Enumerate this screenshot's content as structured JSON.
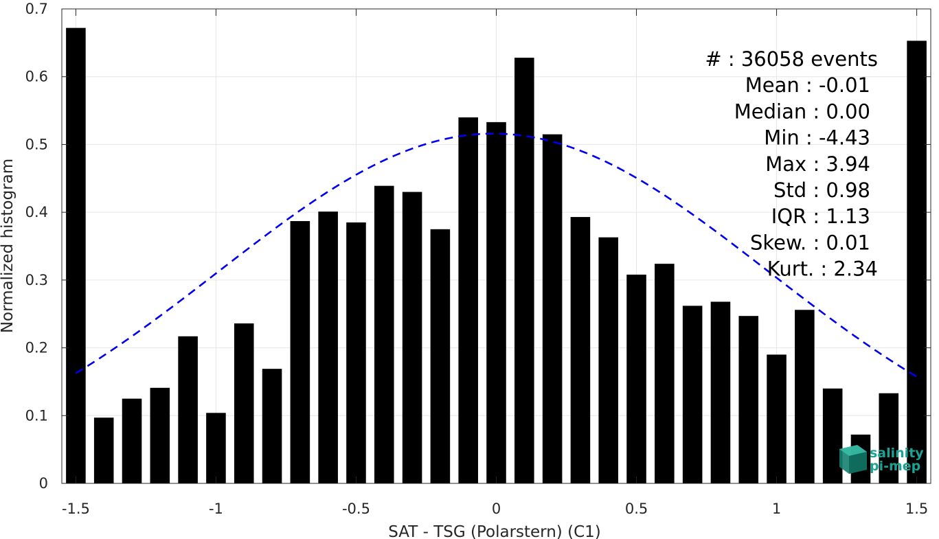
{
  "chart_data": {
    "type": "bar",
    "xlabel": "SAT - TSG (Polarstern) (C1)",
    "ylabel": "Normalized histogram",
    "xlim": [
      -1.55,
      1.55
    ],
    "ylim": [
      0,
      0.7
    ],
    "xticks": [
      -1.5,
      -1,
      -0.5,
      0,
      0.5,
      1,
      1.5
    ],
    "xtick_labels": [
      "-1.5",
      "-1",
      "-0.5",
      "0",
      "0.5",
      "1",
      "1.5"
    ],
    "yticks": [
      0,
      0.1,
      0.2,
      0.3,
      0.4,
      0.5,
      0.6,
      0.7
    ],
    "ytick_labels": [
      "0",
      "0.1",
      "0.2",
      "0.3",
      "0.4",
      "0.5",
      "0.6",
      "0.7"
    ],
    "grid": true,
    "bar_color": "#000000",
    "x": [
      -1.5,
      -1.4,
      -1.3,
      -1.2,
      -1.1,
      -1.0,
      -0.9,
      -0.8,
      -0.7,
      -0.6,
      -0.5,
      -0.4,
      -0.3,
      -0.2,
      -0.1,
      0.0,
      0.1,
      0.2,
      0.3,
      0.4,
      0.5,
      0.6,
      0.7,
      0.8,
      0.9,
      1.0,
      1.1,
      1.2,
      1.3,
      1.4,
      1.5
    ],
    "values": [
      0.672,
      0.097,
      0.125,
      0.141,
      0.217,
      0.104,
      0.236,
      0.169,
      0.387,
      0.401,
      0.385,
      0.439,
      0.43,
      0.375,
      0.54,
      0.533,
      0.628,
      0.515,
      0.393,
      0.363,
      0.308,
      0.324,
      0.262,
      0.268,
      0.247,
      0.19,
      0.256,
      0.14,
      0.072,
      0.133,
      0.653
    ],
    "fit_curve": {
      "type": "gaussian",
      "mean": -0.01,
      "std": 0.98,
      "peak": 0.516,
      "x_range": [
        -1.5,
        1.5
      ],
      "color": "#0000ee",
      "style": "dashed"
    },
    "stats": [
      "#  : 36058 events",
      "Mean : -0.01",
      "Median : 0.00",
      "Min : -4.43",
      "Max : 3.94",
      "Std : 0.98",
      "IQR : 1.13",
      "Skew. : 0.01",
      "Kurt. : 2.34"
    ],
    "logo": {
      "line1": "salinity",
      "line2": "pi-mep",
      "color": "#1aa394"
    }
  }
}
